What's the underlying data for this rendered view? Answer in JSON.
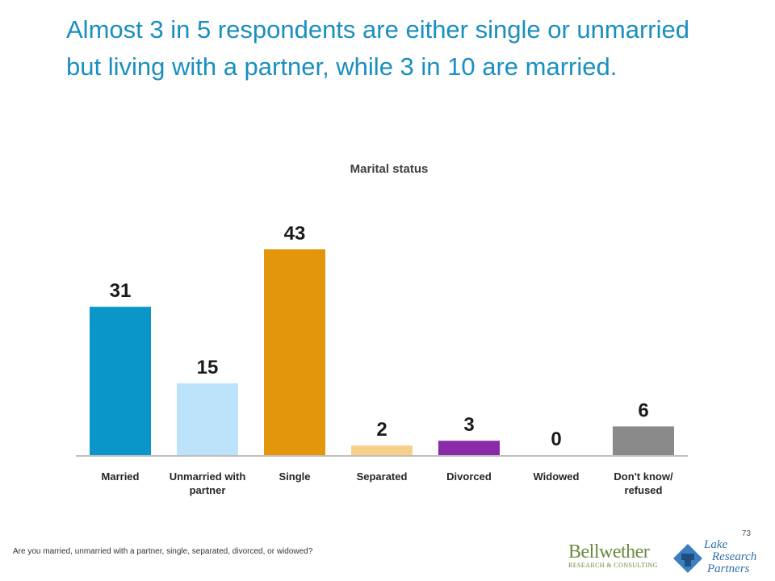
{
  "slide": {
    "title": "Almost 3 in 5 respondents are either single or unmarried but living with a partner, while 3 in 10 are married.",
    "slide_number": "73",
    "question_note": "Are you married, unmarried with a partner, single, separated, divorced, or widowed?",
    "logos": {
      "bellwether_name": "Bellwether",
      "bellwether_sub": "RESEARCH & CONSULTING",
      "lake_line1": "Lake",
      "lake_line2": "Research",
      "lake_line3": "Partners"
    }
  },
  "chart_data": {
    "type": "bar",
    "title": "Marital status",
    "categories": [
      [
        "Married"
      ],
      [
        "Unmarried with",
        "partner"
      ],
      [
        "Single"
      ],
      [
        "Separated"
      ],
      [
        "Divorced"
      ],
      [
        "Widowed"
      ],
      [
        "Don't know/",
        "refused"
      ]
    ],
    "values": [
      31,
      15,
      43,
      2,
      3,
      0,
      6
    ],
    "colors": [
      "#0a96c8",
      "#bde3fa",
      "#e4960a",
      "#f8d08a",
      "#8a2aa8",
      "#ffffff",
      "#8a8a8a"
    ],
    "axis_color": "#bfbfbf",
    "ylim": [
      0,
      43
    ],
    "grid": false,
    "legend": "none"
  }
}
